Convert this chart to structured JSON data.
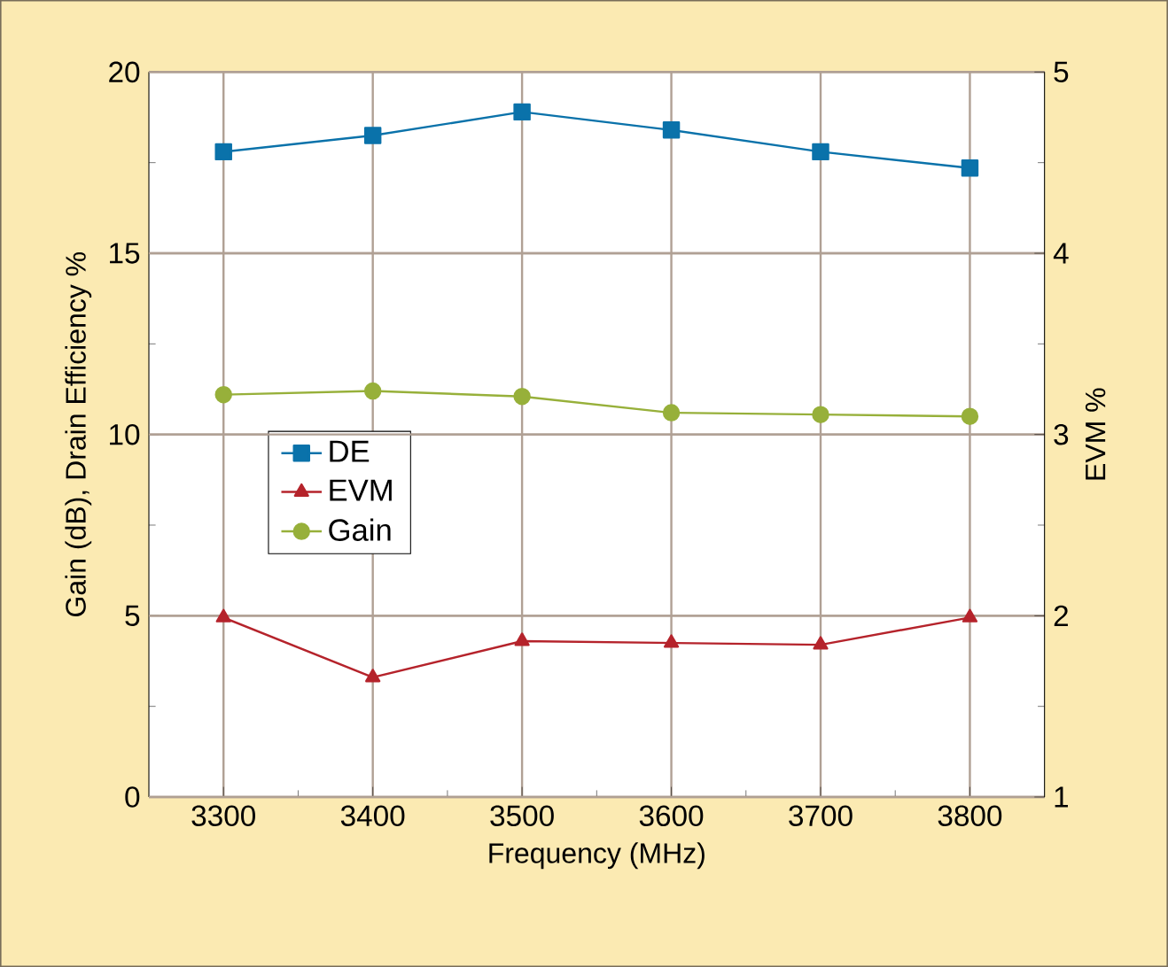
{
  "chart_data": {
    "type": "line",
    "xlabel": "Frequency (MHz)",
    "ylabel": "Gain (dB), Drain Efficiency %",
    "y2label": "EVM %",
    "x": [
      3300,
      3400,
      3500,
      3600,
      3700,
      3800
    ],
    "xlim": [
      3250,
      3850
    ],
    "xticks": [
      3300,
      3400,
      3500,
      3600,
      3700,
      3800
    ],
    "ylim": [
      0,
      20
    ],
    "yticks": [
      0,
      5,
      10,
      15,
      20
    ],
    "y2lim": [
      1,
      5
    ],
    "y2ticks": [
      1,
      2,
      3,
      4,
      5
    ],
    "series": [
      {
        "name": "DE",
        "color": "#0a72aa",
        "marker": "square",
        "values": [
          17.8,
          18.25,
          18.9,
          18.4,
          17.8,
          17.35
        ]
      },
      {
        "name": "EVM",
        "color": "#b5232b",
        "marker": "triangle",
        "axis": "y2",
        "values": [
          1.99,
          1.66,
          1.86,
          1.85,
          1.84,
          1.99
        ]
      },
      {
        "name": "Gain",
        "color": "#97b03a",
        "marker": "circle",
        "values": [
          11.1,
          11.2,
          11.05,
          10.6,
          10.55,
          10.5
        ]
      }
    ],
    "grid": true,
    "legend": "left",
    "line_style": "solid"
  }
}
